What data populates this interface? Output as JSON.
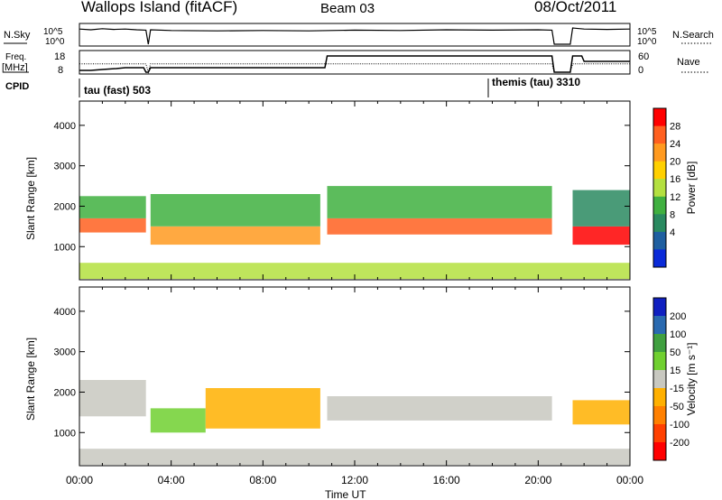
{
  "header": {
    "station": "Wallops Island (fitACF)",
    "beam": "Beam 03",
    "date": "08/Oct/2011"
  },
  "top_panels": {
    "nsky_label": "N.Sky",
    "nsearch_label": "N.Search",
    "nsky_ticks": [
      "10^5",
      "10^0"
    ],
    "freq_label_top": "Freq.",
    "freq_label_unit": "[MHz]",
    "freq_ticks": [
      "18",
      "8"
    ],
    "nave_label": "Nave",
    "nave_ticks": [
      "60",
      "0"
    ],
    "cpid_label": "CPID",
    "cpid_segments": [
      {
        "name": "tau (fast) 503",
        "start_hour": 0
      },
      {
        "name": "themis (tau) 3310",
        "start_hour": 18
      }
    ]
  },
  "colorbars": {
    "power": {
      "label": "Power [dB]",
      "ticks": [
        "28",
        "24",
        "20",
        "16",
        "12",
        "8",
        "4"
      ],
      "colors": [
        "#ff0000",
        "#ff6020",
        "#ff9a20",
        "#ffd000",
        "#b4e040",
        "#40b040",
        "#2a8a60",
        "#1f5fa0",
        "#0a2ad8"
      ]
    },
    "velocity": {
      "label": "Velocity [m s⁻¹]",
      "ticks": [
        "200",
        "100",
        "50",
        "15",
        "-15",
        "-50",
        "-100",
        "-200"
      ],
      "colors": [
        "#1020c0",
        "#2a6ab0",
        "#40a040",
        "#70d030",
        "#c8c8c0",
        "#ffb000",
        "#ff8000",
        "#ff4000",
        "#ff0000"
      ]
    }
  },
  "axes": {
    "ylabel": "Slant Range [km]",
    "y_ticks": [
      "4000",
      "3000",
      "2000",
      "1000"
    ],
    "xlabel": "Time UT",
    "x_ticks": [
      "00:00",
      "04:00",
      "08:00",
      "12:00",
      "16:00",
      "20:00",
      "00:00"
    ]
  },
  "chart_data": [
    {
      "type": "line",
      "name": "N.Sky / N.Search",
      "x_unit": "hours UT",
      "x": [
        0,
        0.5,
        1,
        1.5,
        2,
        2.5,
        2.9,
        3.0,
        3.1,
        4,
        6,
        8,
        10,
        12,
        14,
        16,
        18,
        20,
        20.6,
        20.7,
        21.4,
        21.5,
        22,
        23,
        24
      ],
      "y_log10": [
        4.2,
        4.0,
        4.3,
        4.1,
        4.2,
        4.0,
        3.9,
        0,
        4.0,
        3.8,
        3.7,
        3.8,
        3.7,
        3.9,
        3.8,
        4.0,
        3.9,
        4.0,
        3.9,
        0,
        0,
        4.5,
        4.2,
        4.1,
        4.2
      ]
    },
    {
      "type": "line",
      "name": "Freq",
      "y_unit": "MHz",
      "ylim": [
        8,
        18
      ],
      "x": [
        0,
        0.5,
        1.0,
        1.6,
        2.0,
        2.8,
        2.9,
        3.0,
        3.1,
        10.7,
        10.8,
        20.6,
        20.7,
        21.4,
        21.5,
        21.9,
        22.0,
        24
      ],
      "y": [
        9,
        9,
        9.5,
        10,
        10.5,
        10.5,
        8,
        8,
        10.5,
        10.5,
        17,
        17,
        8,
        8,
        17,
        17,
        14,
        14
      ]
    },
    {
      "type": "line",
      "name": "Nave",
      "ylim": [
        0,
        60
      ],
      "x": [
        0,
        2.9,
        3.0,
        3.1,
        20.6,
        20.7,
        21.4,
        21.5,
        24
      ],
      "y": [
        28,
        28,
        0,
        28,
        28,
        0,
        0,
        28,
        28
      ]
    },
    {
      "type": "heatmap",
      "name": "Power",
      "value_unit": "dB",
      "x_unit": "hours UT",
      "y_unit": "km",
      "xlim": [
        0,
        24
      ],
      "ylim": [
        180,
        4600
      ],
      "bands": [
        {
          "x": [
            0,
            2.9
          ],
          "y": [
            1350,
            1700
          ],
          "value": 26
        },
        {
          "x": [
            0,
            2.9
          ],
          "y": [
            1700,
            2250
          ],
          "value": 12
        },
        {
          "x": [
            3.1,
            10.5
          ],
          "y": [
            1050,
            1500
          ],
          "value": 20
        },
        {
          "x": [
            3.1,
            10.5
          ],
          "y": [
            1500,
            2300
          ],
          "value": 12
        },
        {
          "x": [
            10.8,
            20.6
          ],
          "y": [
            1300,
            1700
          ],
          "value": 26
        },
        {
          "x": [
            10.8,
            20.6
          ],
          "y": [
            1700,
            2500
          ],
          "value": 10
        },
        {
          "x": [
            21.5,
            24
          ],
          "y": [
            1050,
            1500
          ],
          "value": 27
        },
        {
          "x": [
            21.5,
            24
          ],
          "y": [
            1500,
            2400
          ],
          "value": 8
        },
        {
          "x": [
            0,
            24
          ],
          "y": [
            200,
            600
          ],
          "value": 14
        }
      ]
    },
    {
      "type": "heatmap",
      "name": "Velocity",
      "value_unit": "m s-1",
      "x_unit": "hours UT",
      "y_unit": "km",
      "xlim": [
        0,
        24
      ],
      "ylim": [
        180,
        4600
      ],
      "bands": [
        {
          "x": [
            0,
            2.9
          ],
          "y": [
            1400,
            2300
          ],
          "value": 0
        },
        {
          "x": [
            3.1,
            5.5
          ],
          "y": [
            1000,
            1600
          ],
          "value": 40
        },
        {
          "x": [
            5.5,
            10.5
          ],
          "y": [
            1100,
            2100
          ],
          "value": -30
        },
        {
          "x": [
            10.8,
            20.6
          ],
          "y": [
            1300,
            1900
          ],
          "value": 0
        },
        {
          "x": [
            21.5,
            24
          ],
          "y": [
            1200,
            1800
          ],
          "value": -20
        },
        {
          "x": [
            0,
            24
          ],
          "y": [
            200,
            600
          ],
          "value": 10
        }
      ]
    }
  ]
}
